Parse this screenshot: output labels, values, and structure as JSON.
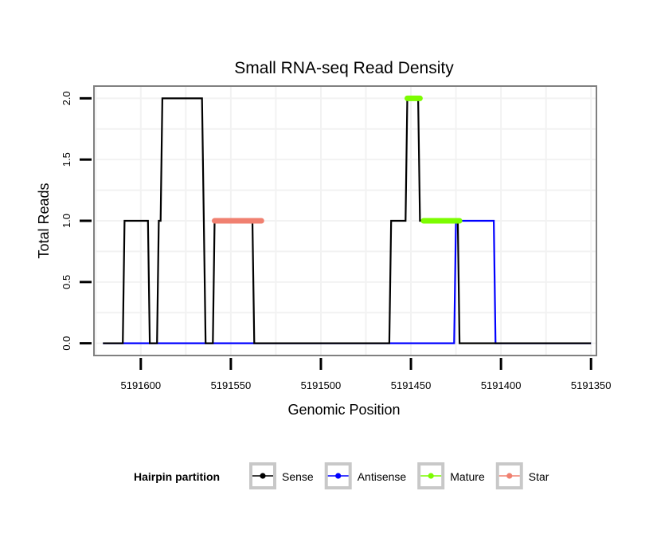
{
  "chart_data": {
    "type": "line",
    "title": "Small RNA-seq Read Density",
    "xlabel": "Genomic Position",
    "ylabel": "Total Reads",
    "xlim": [
      5191626,
      5191347
    ],
    "ylim": [
      -0.1,
      2.1
    ],
    "x_reversed": true,
    "xticks": [
      5191600,
      5191550,
      5191500,
      5191450,
      5191400,
      5191350
    ],
    "xtick_labels": [
      "5191600",
      "5191550",
      "5191500",
      "5191450",
      "5191400",
      "5191350"
    ],
    "yticks": [
      0,
      0.5,
      1,
      1.5,
      2
    ],
    "ytick_labels": [
      "0.0",
      "0.5",
      "1.0",
      "1.5",
      "2.0"
    ],
    "grid": true,
    "legend": {
      "title": "Hairpin partition",
      "position": "bottom",
      "entries": [
        {
          "label": "Sense",
          "color": "#000000"
        },
        {
          "label": "Antisense",
          "color": "#0000ff"
        },
        {
          "label": "Mature",
          "color": "#7cfc00"
        },
        {
          "label": "Star",
          "color": "#f08070"
        }
      ]
    },
    "series": [
      {
        "name": "Antisense",
        "color": "#0000ff",
        "stroke": 2.2,
        "x": [
          5191621,
          5191426,
          5191425,
          5191404,
          5191403,
          5191350
        ],
        "y": [
          0,
          0,
          1,
          1,
          0,
          0
        ]
      },
      {
        "name": "Sense",
        "color": "#000000",
        "stroke": 2.2,
        "x": [
          5191621,
          5191610,
          5191609,
          5191596,
          5191595,
          5191591,
          5191590,
          5191589,
          5191588,
          5191566,
          5191564,
          5191560,
          5191559,
          5191545,
          5191544,
          5191538,
          5191537,
          5191462,
          5191461,
          5191453,
          5191452,
          5191446,
          5191445,
          5191424,
          5191423,
          5191401,
          5191400,
          5191372,
          5191371,
          5191350
        ],
        "y": [
          0,
          0,
          1,
          1,
          0,
          0,
          1,
          1,
          2,
          2,
          0,
          0,
          1,
          1,
          1,
          1,
          0,
          0,
          1,
          1,
          2,
          2,
          1,
          1,
          0,
          0,
          0,
          0,
          0,
          0
        ]
      },
      {
        "name": "Star",
        "color": "#f08070",
        "stroke": 7,
        "x": [
          5191559,
          5191533
        ],
        "y": [
          1,
          1
        ]
      },
      {
        "name": "Mature",
        "color": "#7cfc00",
        "stroke": 7,
        "x": [
          5191452,
          5191445
        ],
        "y": [
          2,
          2
        ]
      },
      {
        "name": "Mature",
        "color": "#7cfc00",
        "stroke": 7,
        "x": [
          5191443,
          5191423
        ],
        "y": [
          1,
          1
        ]
      }
    ]
  }
}
